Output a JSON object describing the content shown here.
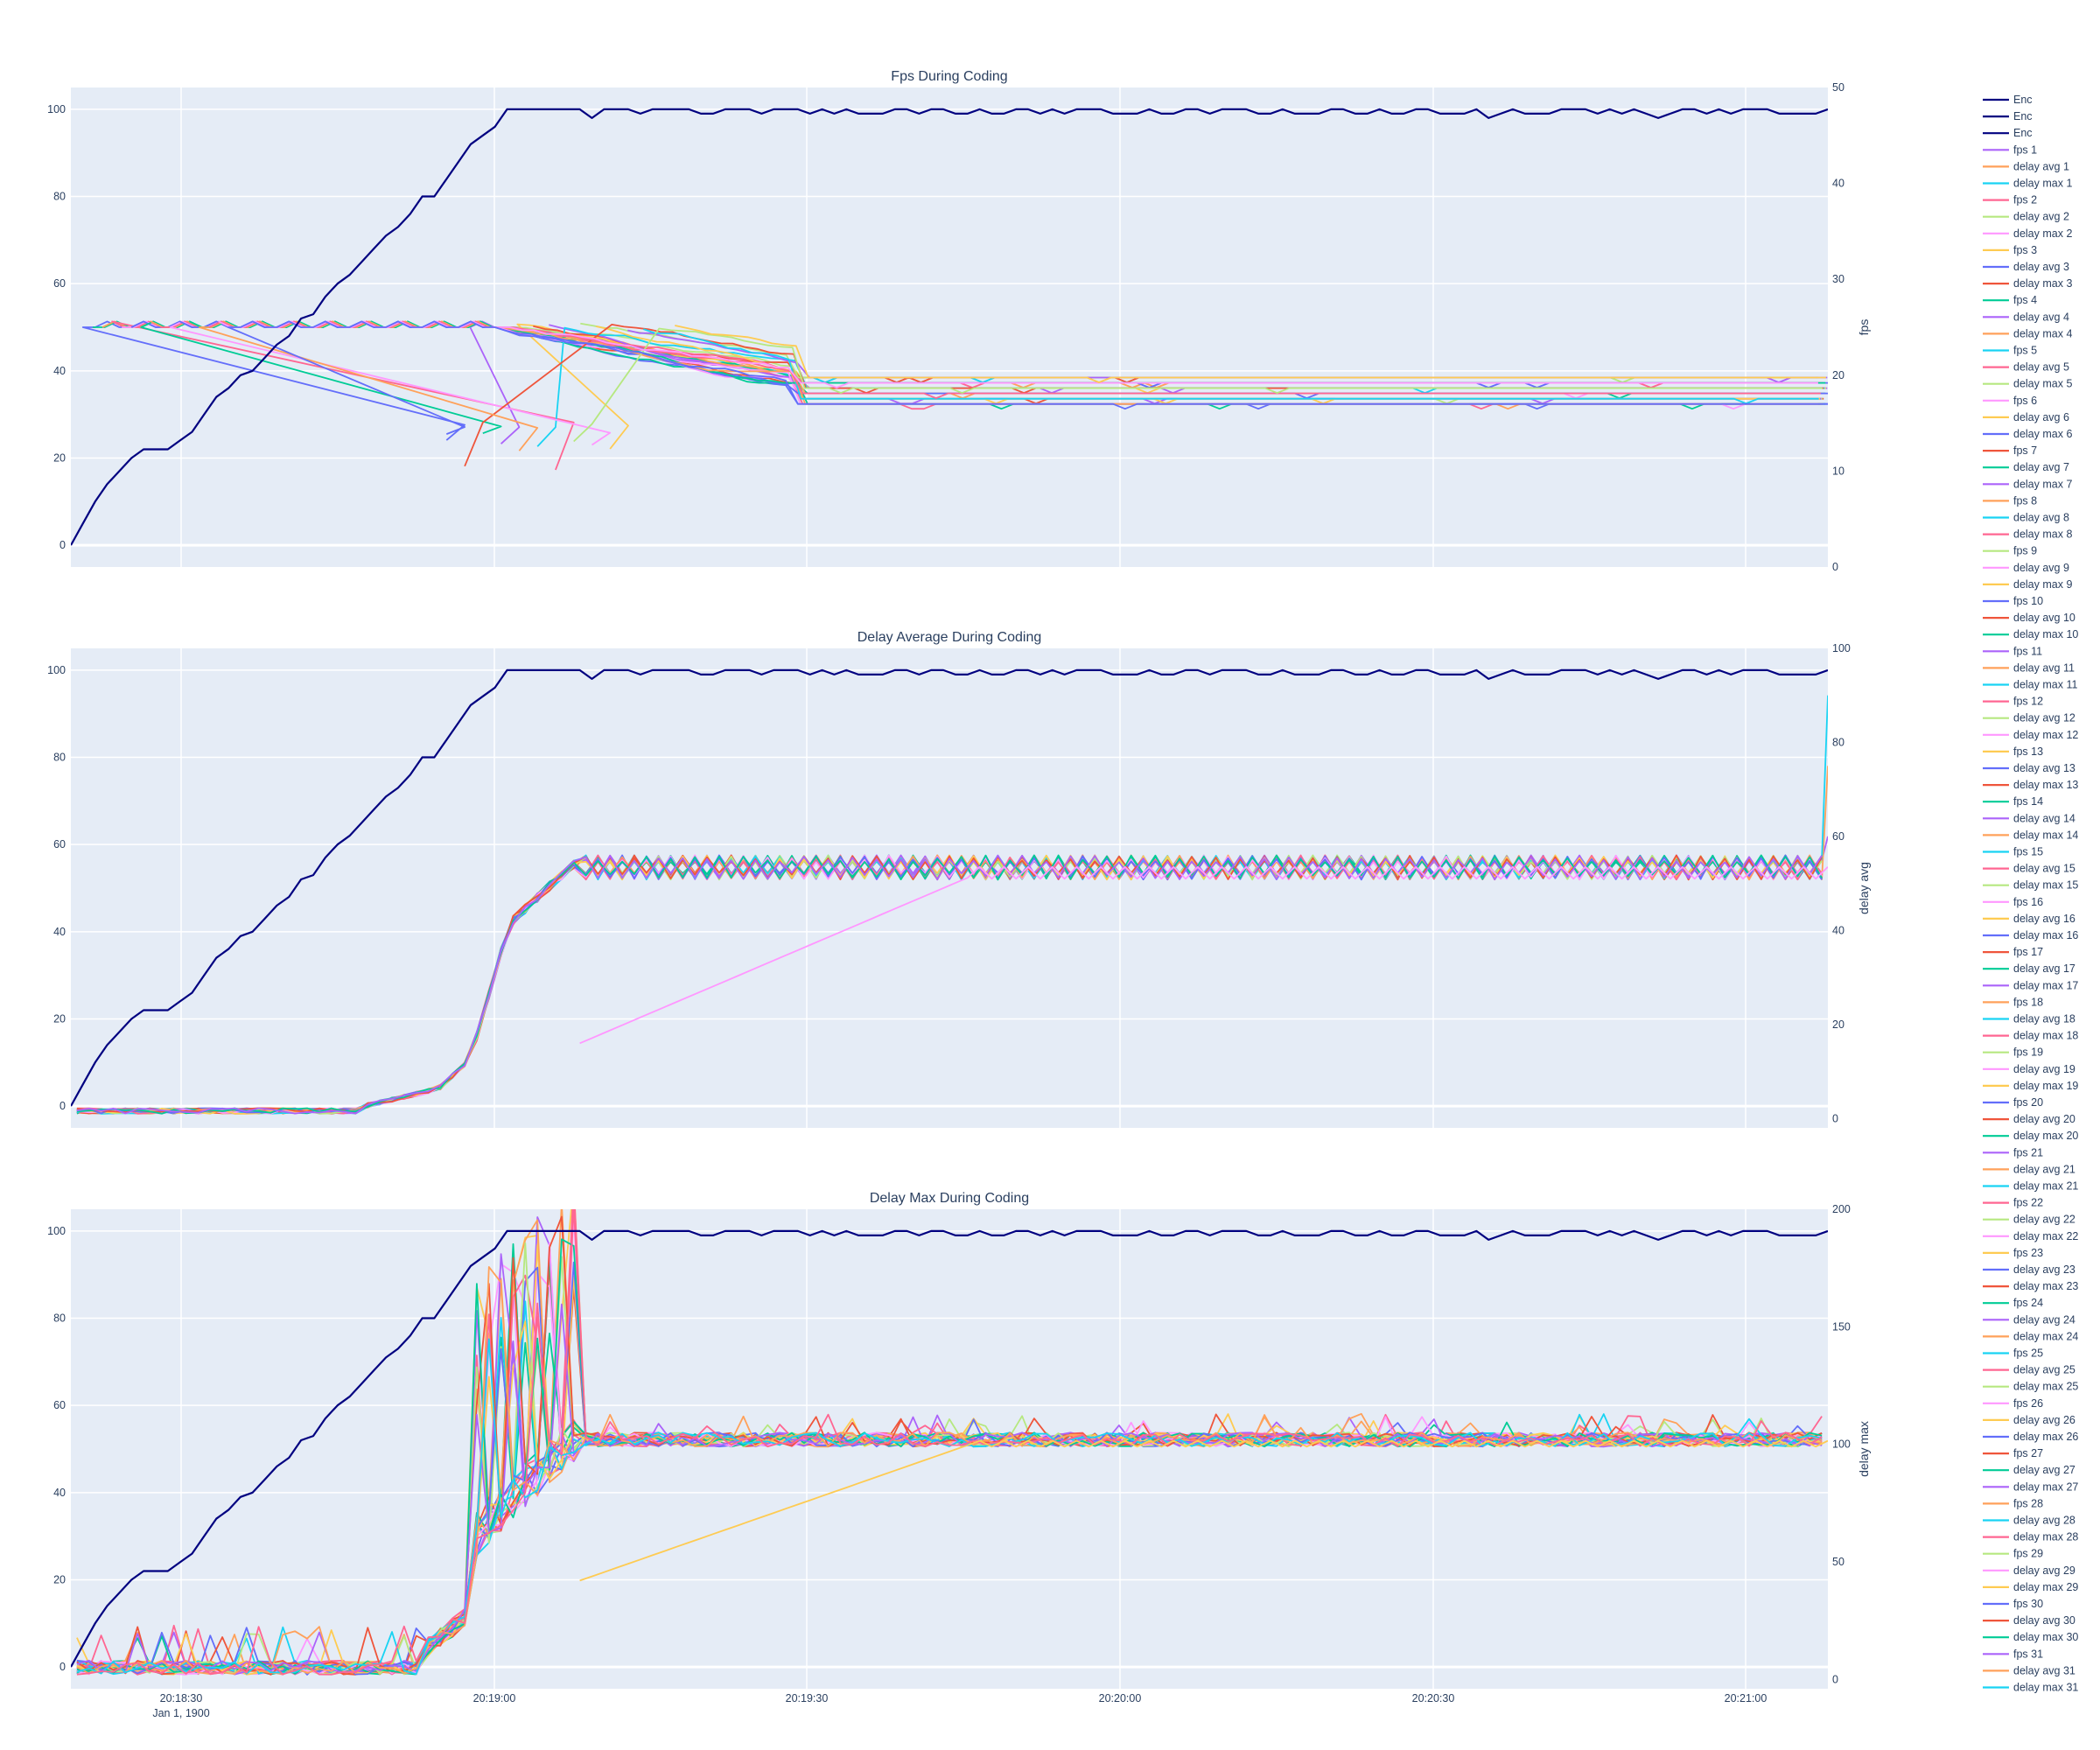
{
  "chart_data": [
    {
      "type": "line",
      "title": "Fps During Coding",
      "ylabel_right": "fps",
      "y_left_range": [
        -5,
        105
      ],
      "y_left_ticks": [
        "0",
        "20",
        "40",
        "60",
        "80",
        "100"
      ],
      "y_right_range": [
        0,
        50
      ],
      "y_right_ticks": [
        "0",
        "10",
        "20",
        "30",
        "40",
        "50"
      ],
      "x_range": [
        "20:18:17",
        "20:21:05"
      ],
      "x_ticks": [
        "20:18:30",
        "20:19:00",
        "20:19:30",
        "20:20:00",
        "20:20:30",
        "20:21:00"
      ],
      "x_sublabel": "Jan 1, 1900",
      "series_description": "Enc (left axis, 0 -> 100 by 20:18:53 then ~99-100); fps N (right axis, ~25 falling to ~17-20); delay avg/max drawn as overlapping colored lines",
      "enc": [
        [
          0,
          0
        ],
        [
          2,
          5
        ],
        [
          4,
          10
        ],
        [
          6,
          14
        ],
        [
          8,
          17
        ],
        [
          10,
          20
        ],
        [
          12,
          22
        ],
        [
          14,
          22
        ],
        [
          16,
          22
        ],
        [
          18,
          24
        ],
        [
          20,
          26
        ],
        [
          22,
          30
        ],
        [
          24,
          34
        ],
        [
          26,
          36
        ],
        [
          28,
          39
        ],
        [
          30,
          40
        ],
        [
          32,
          43
        ],
        [
          34,
          46
        ],
        [
          36,
          48
        ],
        [
          38,
          52
        ],
        [
          40,
          53
        ],
        [
          42,
          57
        ],
        [
          44,
          60
        ],
        [
          46,
          62
        ],
        [
          48,
          65
        ],
        [
          50,
          68
        ],
        [
          52,
          71
        ],
        [
          54,
          73
        ],
        [
          56,
          76
        ],
        [
          58,
          80
        ],
        [
          60,
          80
        ],
        [
          62,
          84
        ],
        [
          64,
          88
        ],
        [
          66,
          92
        ],
        [
          68,
          94
        ],
        [
          70,
          96
        ],
        [
          72,
          100
        ],
        [
          74,
          100
        ],
        [
          80,
          100
        ],
        [
          84,
          100
        ],
        [
          86,
          98
        ],
        [
          88,
          100
        ],
        [
          92,
          100
        ],
        [
          94,
          99
        ],
        [
          96,
          100
        ],
        [
          102,
          100
        ],
        [
          104,
          99
        ],
        [
          106,
          99
        ],
        [
          108,
          100
        ],
        [
          112,
          100
        ],
        [
          114,
          99
        ],
        [
          116,
          100
        ],
        [
          120,
          100
        ],
        [
          122,
          99
        ],
        [
          124,
          100
        ],
        [
          126,
          99
        ],
        [
          128,
          100
        ],
        [
          130,
          99
        ],
        [
          134,
          99
        ],
        [
          136,
          100
        ],
        [
          138,
          100
        ],
        [
          140,
          99
        ],
        [
          142,
          100
        ],
        [
          144,
          100
        ],
        [
          146,
          99
        ],
        [
          148,
          99
        ],
        [
          150,
          100
        ],
        [
          152,
          99
        ],
        [
          154,
          99
        ],
        [
          156,
          100
        ],
        [
          158,
          100
        ],
        [
          160,
          99
        ],
        [
          162,
          100
        ],
        [
          164,
          99
        ],
        [
          166,
          100
        ],
        [
          170,
          100
        ],
        [
          172,
          99
        ],
        [
          176,
          99
        ],
        [
          178,
          100
        ],
        [
          180,
          99
        ],
        [
          182,
          99
        ],
        [
          184,
          100
        ],
        [
          186,
          100
        ],
        [
          188,
          99
        ],
        [
          190,
          100
        ],
        [
          194,
          100
        ],
        [
          196,
          99
        ],
        [
          198,
          99
        ],
        [
          200,
          100
        ],
        [
          202,
          99
        ],
        [
          204,
          99
        ],
        [
          206,
          99
        ],
        [
          208,
          100
        ],
        [
          210,
          100
        ],
        [
          212,
          99
        ],
        [
          214,
          99
        ],
        [
          216,
          100
        ],
        [
          218,
          99
        ],
        [
          220,
          99
        ],
        [
          222,
          100
        ],
        [
          224,
          100
        ],
        [
          226,
          99
        ],
        [
          228,
          99
        ],
        [
          230,
          99
        ],
        [
          232,
          100
        ],
        [
          234,
          98
        ],
        [
          236,
          99
        ],
        [
          238,
          100
        ],
        [
          240,
          99
        ],
        [
          242,
          99
        ],
        [
          244,
          99
        ],
        [
          246,
          100
        ],
        [
          248,
          100
        ],
        [
          250,
          100
        ],
        [
          252,
          99
        ],
        [
          254,
          100
        ],
        [
          256,
          99
        ],
        [
          258,
          100
        ],
        [
          260,
          99
        ],
        [
          262,
          98
        ],
        [
          264,
          99
        ],
        [
          266,
          100
        ],
        [
          268,
          100
        ],
        [
          270,
          99
        ],
        [
          272,
          100
        ],
        [
          274,
          99
        ],
        [
          276,
          100
        ],
        [
          278,
          100
        ],
        [
          280,
          100
        ],
        [
          282,
          99
        ],
        [
          284,
          99
        ],
        [
          286,
          99
        ],
        [
          288,
          99
        ],
        [
          290,
          100
        ]
      ]
    },
    {
      "type": "line",
      "title": "Delay Average During Coding",
      "ylabel_right": "delay avg",
      "y_left_range": [
        -5,
        105
      ],
      "y_left_ticks": [
        "0",
        "20",
        "40",
        "60",
        "80",
        "100"
      ],
      "y_right_range": [
        -2,
        100
      ],
      "y_right_ticks": [
        "0",
        "20",
        "40",
        "60",
        "80",
        "100"
      ],
      "series_description": "delay avg N rises from ~1 to ~52-55 around 20:18:55-20:19:05, oscillating afterwards; one slow series (delay avg ~16) climbs gradually to ~52 by 20:19:35"
    },
    {
      "type": "line",
      "title": "Delay Max During Coding",
      "ylabel_right": "delay max",
      "y_left_range": [
        -5,
        105
      ],
      "y_left_ticks": [
        "0",
        "20",
        "40",
        "60",
        "80",
        "100"
      ],
      "y_right_range": [
        -4,
        200
      ],
      "y_right_ticks": [
        "0",
        "50",
        "100",
        "150",
        "200"
      ],
      "series_description": "delay max N spikes to 100-190 near 20:19:00, then settles ~100; one slow series rises from ~40 to ~100"
    }
  ],
  "legend": {
    "items": [
      "Enc",
      "Enc",
      "Enc",
      "fps 1",
      "delay avg 1",
      "delay max 1",
      "fps 2",
      "delay avg 2",
      "delay max 2",
      "fps 3",
      "delay avg 3",
      "delay max 3",
      "fps 4",
      "delay avg 4",
      "delay max 4",
      "fps 5",
      "delay avg 5",
      "delay max 5",
      "fps 6",
      "delay avg 6",
      "delay max 6",
      "fps 7",
      "delay avg 7",
      "delay max 7",
      "fps 8",
      "delay avg 8",
      "delay max 8",
      "fps 9",
      "delay avg 9",
      "delay max 9",
      "fps 10",
      "delay avg 10",
      "delay max 10",
      "fps 11",
      "delay avg 11",
      "delay max 11",
      "fps 12",
      "delay avg 12",
      "delay max 12",
      "fps 13",
      "delay avg 13",
      "delay max 13",
      "fps 14",
      "delay avg 14",
      "delay max 14",
      "fps 15",
      "delay avg 15",
      "delay max 15",
      "fps 16",
      "delay avg 16",
      "delay max 16",
      "fps 17",
      "delay avg 17",
      "delay max 17",
      "fps 18",
      "delay avg 18",
      "delay max 18",
      "fps 19",
      "delay avg 19",
      "delay max 19",
      "fps 20",
      "delay avg 20",
      "delay max 20",
      "fps 21",
      "delay avg 21",
      "delay max 21",
      "fps 22",
      "delay avg 22",
      "delay max 22",
      "fps 23",
      "delay avg 23",
      "delay max 23",
      "fps 24",
      "delay avg 24",
      "delay max 24",
      "fps 25",
      "delay avg 25",
      "delay max 25",
      "fps 26",
      "delay avg 26",
      "delay max 26",
      "fps 27",
      "delay avg 27",
      "delay max 27",
      "fps 28",
      "delay avg 28",
      "delay max 28",
      "fps 29",
      "delay avg 29",
      "delay max 29",
      "fps 30",
      "delay avg 30",
      "delay max 30",
      "fps 31",
      "delay avg 31",
      "delay max 31"
    ],
    "colors": [
      "#000080",
      "#000080",
      "#000080",
      "#ab63fa",
      "#FFA15A",
      "#19d3f3",
      "#FF6692",
      "#B6E880",
      "#FF97FF",
      "#FECB52",
      "#636efa",
      "#EF553B",
      "#00cc96",
      "#ab63fa",
      "#FFA15A",
      "#19d3f3",
      "#FF6692",
      "#B6E880",
      "#FF97FF",
      "#FECB52",
      "#636efa",
      "#EF553B",
      "#00cc96",
      "#ab63fa",
      "#FFA15A",
      "#19d3f3",
      "#FF6692",
      "#B6E880",
      "#FF97FF",
      "#FECB52",
      "#636efa",
      "#EF553B",
      "#00cc96",
      "#ab63fa",
      "#FFA15A",
      "#19d3f3",
      "#FF6692",
      "#B6E880",
      "#FF97FF",
      "#FECB52",
      "#636efa",
      "#EF553B",
      "#00cc96",
      "#ab63fa",
      "#FFA15A",
      "#19d3f3",
      "#FF6692",
      "#B6E880",
      "#FF97FF",
      "#FECB52",
      "#636efa",
      "#EF553B",
      "#00cc96",
      "#ab63fa",
      "#FFA15A",
      "#19d3f3",
      "#FF6692",
      "#B6E880",
      "#FF97FF",
      "#FECB52",
      "#636efa",
      "#EF553B",
      "#00cc96",
      "#ab63fa",
      "#FFA15A",
      "#19d3f3",
      "#FF6692",
      "#B6E880",
      "#FF97FF",
      "#FECB52",
      "#636efa",
      "#EF553B",
      "#00cc96",
      "#ab63fa",
      "#FFA15A",
      "#19d3f3",
      "#FF6692",
      "#B6E880",
      "#FF97FF",
      "#FECB52",
      "#636efa",
      "#EF553B",
      "#00cc96",
      "#ab63fa",
      "#FFA15A",
      "#19d3f3",
      "#FF6692",
      "#B6E880",
      "#FF97FF",
      "#FECB52",
      "#636efa",
      "#EF553B",
      "#00cc96",
      "#ab63fa",
      "#FFA15A",
      "#19d3f3"
    ]
  },
  "palette": [
    "#636efa",
    "#EF553B",
    "#00cc96",
    "#ab63fa",
    "#FFA15A",
    "#19d3f3",
    "#FF6692",
    "#B6E880",
    "#FF97FF",
    "#FECB52"
  ]
}
